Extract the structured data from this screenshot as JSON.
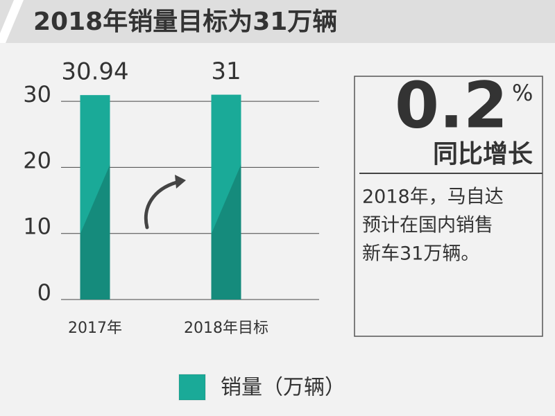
{
  "chart_data": {
    "type": "bar",
    "title": "2018年销量目标为31万辆",
    "categories": [
      "2017年",
      "2018年目标"
    ],
    "series": [
      {
        "name": "销量（万辆）",
        "color": "#1aaa98",
        "values": [
          30.94,
          31
        ]
      }
    ],
    "ylim": [
      0,
      32
    ],
    "yticks": [
      0,
      10,
      20,
      30
    ],
    "grid": true,
    "growth": {
      "value": "0.2",
      "unit": "%",
      "label": "同比增长"
    },
    "note": [
      "2018年，马自达",
      "预计在国内销售",
      "新车31万辆。"
    ]
  }
}
